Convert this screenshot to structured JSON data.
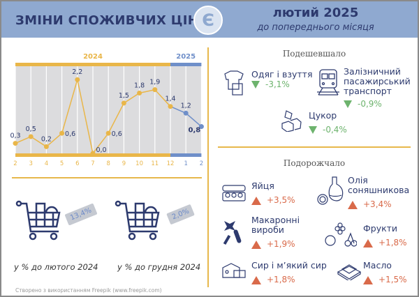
{
  "header": {
    "title": "ЗМІНИ СПОЖИВЧИХ ЦІН",
    "logo_letter": "Є",
    "period": "лютий 2025",
    "subtitle": "до попереднього місяця"
  },
  "chart_data": {
    "type": "line",
    "year_labels": [
      "2024",
      "2025"
    ],
    "categories": [
      "2",
      "3",
      "4",
      "5",
      "6",
      "7",
      "8",
      "9",
      "10",
      "11",
      "12",
      "1",
      "2"
    ],
    "values": [
      0.3,
      0.5,
      0.2,
      0.6,
      2.2,
      0.0,
      0.6,
      1.5,
      1.8,
      1.9,
      1.4,
      1.2,
      0.8
    ],
    "value_labels": [
      "0,3",
      "0,5",
      "0,2",
      "0,6",
      "2,2",
      "0,0",
      "0,6",
      "1,5",
      "1,8",
      "1,9",
      "1,4",
      "1,2",
      "0,8"
    ],
    "ylim": [
      0,
      2.6
    ],
    "grid": true,
    "colors": {
      "2024": "#e9b649",
      "2025": "#6f8fc9"
    }
  },
  "annual": [
    {
      "value": "13,4%",
      "caption": "у % до лютого 2024"
    },
    {
      "value": "2,0%",
      "caption": "у % до грудня 2024"
    }
  ],
  "cheaper": {
    "title": "Подешевшало",
    "items": [
      {
        "name": "Одяг і взуття",
        "change": "-3,1%",
        "icon": "clothes-icon"
      },
      {
        "name": "Залізничний пасажирський транспорт",
        "change": "-0,9%",
        "icon": "train-icon"
      },
      {
        "name": "Цукор",
        "change": "-0,4%",
        "icon": "sugar-cubes-icon"
      }
    ]
  },
  "pricier": {
    "title": "Подорожчало",
    "items": [
      {
        "name": "Яйця",
        "change": "+3,5%",
        "icon": "eggs-icon"
      },
      {
        "name": "Олія соняшникова",
        "change": "+3,4%",
        "icon": "oil-bottle-icon"
      },
      {
        "name": "Макаронні вироби",
        "change": "+1,9%",
        "icon": "pasta-icon"
      },
      {
        "name": "Фрукти",
        "change": "+1,8%",
        "icon": "fruits-icon"
      },
      {
        "name": "Сир і м’який сир",
        "change": "+1,8%",
        "icon": "cheese-icon"
      },
      {
        "name": "Масло",
        "change": "+1,5%",
        "icon": "butter-icon"
      }
    ]
  },
  "footer": {
    "text": "Створено з використанням Freepik (",
    "link": "www.freepik.com",
    "end": ")"
  },
  "colors": {
    "header_bg": "#8fa9d0",
    "title": "#2d3a6e",
    "down": "#6db36d",
    "up": "#d96a4a",
    "divider": "#e7b84b"
  }
}
